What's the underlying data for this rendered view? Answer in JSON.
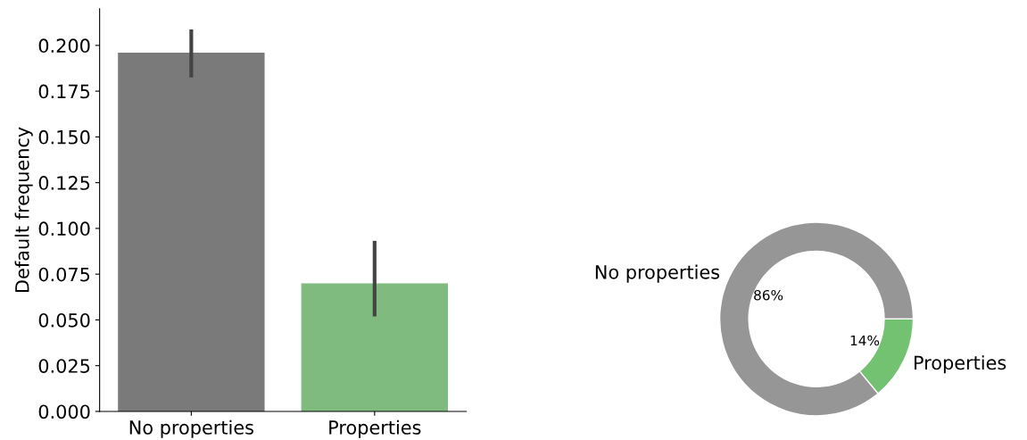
{
  "chart_data": [
    {
      "type": "bar",
      "ylabel": "Default frequency",
      "categories": [
        "No properties",
        "Properties"
      ],
      "values": [
        0.196,
        0.07
      ],
      "colors": [
        "#7a7a7a",
        "#7fba7f"
      ],
      "errors": [
        [
          0.1825,
          0.2087
        ],
        [
          0.0519,
          0.0932
        ]
      ],
      "ylim": [
        0,
        0.22
      ],
      "yticks": [
        {
          "value": 0,
          "label": "0.000"
        },
        {
          "value": 0.025,
          "label": "0.025"
        },
        {
          "value": 0.05,
          "label": "0.050"
        },
        {
          "value": 0.075,
          "label": "0.075"
        },
        {
          "value": 0.1,
          "label": "0.100"
        },
        {
          "value": 0.125,
          "label": "0.125"
        },
        {
          "value": 0.15,
          "label": "0.150"
        },
        {
          "value": 0.175,
          "label": "0.175"
        },
        {
          "value": 0.2,
          "label": "0.200"
        }
      ],
      "grid": false,
      "legend": false
    },
    {
      "type": "donut",
      "categories": [
        "No properties",
        "Properties"
      ],
      "values": [
        86,
        14
      ],
      "colors": [
        "#969696",
        "#72c272"
      ],
      "value_labels": [
        "86%",
        "14%"
      ],
      "legend": false
    }
  ]
}
